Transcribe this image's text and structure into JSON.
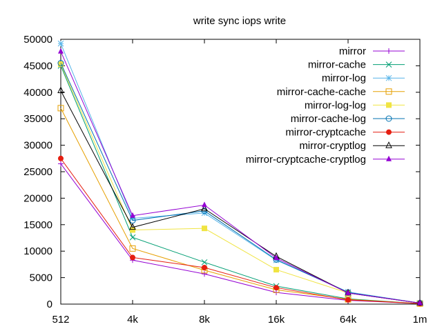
{
  "chart_data": {
    "type": "line",
    "title": "write sync iops write",
    "xlabel": "",
    "ylabel": "",
    "categories": [
      "512",
      "4k",
      "8k",
      "16k",
      "64k",
      "1m"
    ],
    "ylim": [
      0,
      50000
    ],
    "yticks": [
      0,
      5000,
      10000,
      15000,
      20000,
      25000,
      30000,
      35000,
      40000,
      45000,
      50000
    ],
    "grid": false,
    "legend_position": "top-right",
    "series": [
      {
        "name": "mirror",
        "color": "#9400d3",
        "marker": "plus",
        "values": [
          26500,
          8300,
          5700,
          2200,
          700,
          100
        ]
      },
      {
        "name": "mirror-cache",
        "color": "#009e73",
        "marker": "cross",
        "values": [
          45000,
          12600,
          7900,
          3400,
          1000,
          100
        ]
      },
      {
        "name": "mirror-log",
        "color": "#56b4e9",
        "marker": "star",
        "values": [
          49200,
          16200,
          17200,
          8300,
          2300,
          200
        ]
      },
      {
        "name": "mirror-cache-cache",
        "color": "#e69f00",
        "marker": "square-open",
        "values": [
          37000,
          10500,
          6400,
          2700,
          900,
          100
        ]
      },
      {
        "name": "mirror-log-log",
        "color": "#f0e442",
        "marker": "square-filled",
        "values": [
          45300,
          14000,
          14300,
          6500,
          2100,
          200
        ]
      },
      {
        "name": "mirror-cache-log",
        "color": "#0072b2",
        "marker": "circle-open",
        "values": [
          45500,
          15800,
          17600,
          8400,
          2200,
          200
        ]
      },
      {
        "name": "mirror-cryptcache",
        "color": "#e51e10",
        "marker": "circle-filled",
        "values": [
          27500,
          8800,
          6900,
          3100,
          800,
          100
        ]
      },
      {
        "name": "mirror-cryptlog",
        "color": "#000000",
        "marker": "triangle-open",
        "values": [
          40300,
          14500,
          18000,
          9000,
          2100,
          200
        ]
      },
      {
        "name": "mirror-cryptcache-cryptlog",
        "color": "#9400d3",
        "marker": "triangle-filled",
        "values": [
          47700,
          16700,
          18700,
          8700,
          2100,
          200
        ]
      }
    ]
  }
}
